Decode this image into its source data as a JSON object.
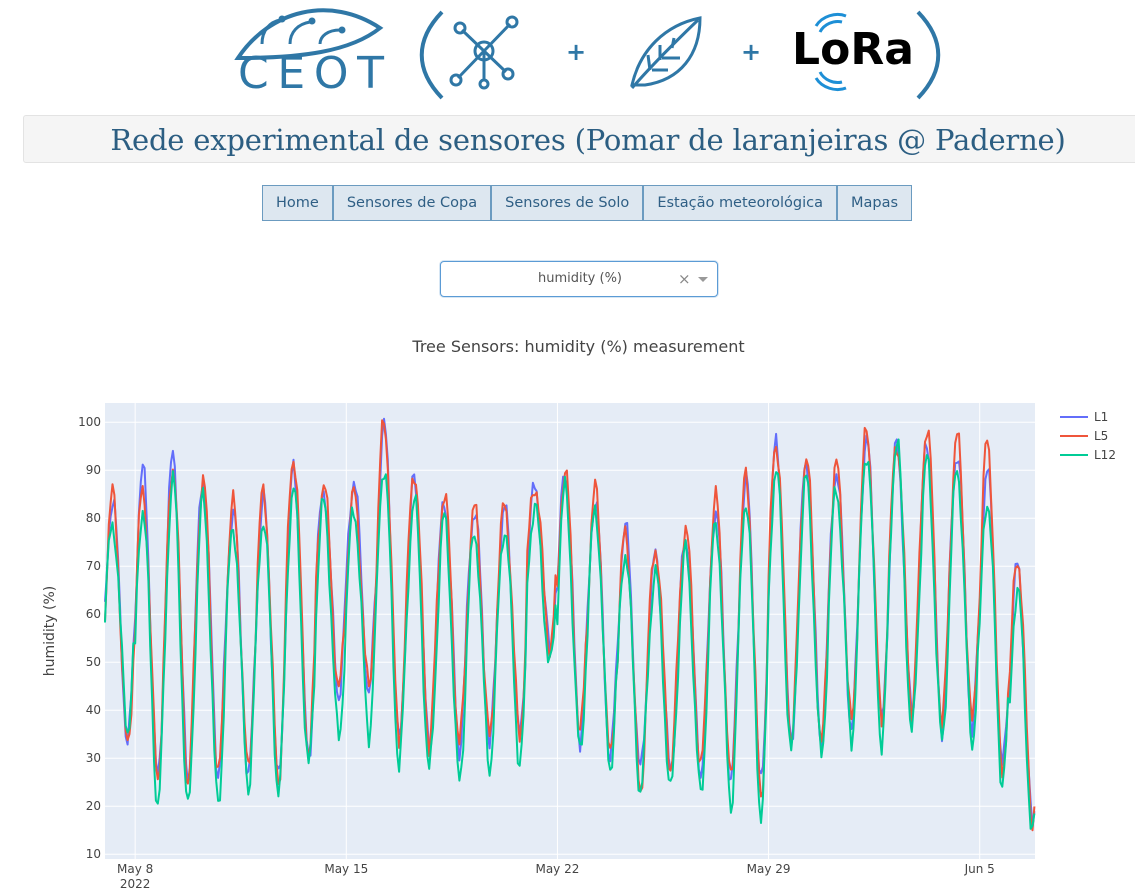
{
  "header": {
    "logo_text": "CEOT",
    "lora_text": "LoRa",
    "plus": "+"
  },
  "page_title": "Rede experimental de sensores (Pomar de laranjeiras @ Paderne)",
  "nav": {
    "items": [
      {
        "label": "Home"
      },
      {
        "label": "Sensores de Copa"
      },
      {
        "label": "Sensores de Solo"
      },
      {
        "label": "Estação meteorológica"
      },
      {
        "label": "Mapas"
      }
    ]
  },
  "dropdown": {
    "value": "humidity (%)",
    "clear_symbol": "×"
  },
  "chart_data": {
    "type": "line",
    "title": "Tree Sensors: humidity (%) measurement",
    "ylabel": "humidity (%)",
    "xlabel": "",
    "ylim": [
      9,
      104
    ],
    "yticks": [
      10,
      20,
      30,
      40,
      50,
      60,
      70,
      80,
      90,
      100
    ],
    "x_range": [
      "2022-05-07 00:00",
      "2022-06-06 20:00"
    ],
    "x_ticks": [
      {
        "date": "2022-05-08",
        "label": "May 8",
        "sublabel": "2022"
      },
      {
        "date": "2022-05-15",
        "label": "May 15"
      },
      {
        "date": "2022-05-22",
        "label": "May 22"
      },
      {
        "date": "2022-05-29",
        "label": "May 29"
      },
      {
        "date": "2022-06-05",
        "label": "Jun 5"
      }
    ],
    "legend_position": "top-right",
    "grid": true,
    "daily_max": {
      "dates": [
        "2022-05-07",
        "2022-05-08",
        "2022-05-09",
        "2022-05-10",
        "2022-05-11",
        "2022-05-12",
        "2022-05-13",
        "2022-05-14",
        "2022-05-15",
        "2022-05-16",
        "2022-05-17",
        "2022-05-18",
        "2022-05-19",
        "2022-05-20",
        "2022-05-21",
        "2022-05-22",
        "2022-05-23",
        "2022-05-24",
        "2022-05-25",
        "2022-05-26",
        "2022-05-27",
        "2022-05-28",
        "2022-05-29",
        "2022-05-30",
        "2022-05-31",
        "2022-06-01",
        "2022-06-02",
        "2022-06-03",
        "2022-06-04",
        "2022-06-05",
        "2022-06-06"
      ],
      "series": [
        {
          "name": "L1",
          "color": "#636efa",
          "values": [
            84,
            90,
            93,
            88,
            82,
            84,
            90,
            86,
            88,
            99,
            88,
            84,
            82,
            82,
            86,
            90,
            84,
            78,
            72,
            76,
            82,
            88,
            95,
            92,
            90,
            96,
            95,
            96,
            94,
            90,
            70
          ]
        },
        {
          "name": "L5",
          "color": "#ef553b",
          "values": [
            85,
            86,
            91,
            88,
            83,
            86,
            93,
            87,
            85,
            100,
            90,
            85,
            82,
            83,
            87,
            90,
            86,
            77,
            74,
            78,
            84,
            89,
            96,
            93,
            91,
            98,
            96,
            99,
            97,
            96,
            72
          ]
        },
        {
          "name": "L12",
          "color": "#00cc96",
          "values": [
            79,
            82,
            88,
            84,
            78,
            80,
            86,
            83,
            82,
            91,
            84,
            80,
            77,
            78,
            82,
            86,
            82,
            73,
            69,
            73,
            79,
            84,
            90,
            88,
            86,
            94,
            96,
            92,
            90,
            84,
            65
          ]
        }
      ]
    },
    "daily_min": {
      "series": [
        {
          "name": "L1",
          "values": [
            33,
            25,
            25,
            27,
            26,
            25,
            30,
            43,
            43,
            33,
            32,
            32,
            33,
            34,
            53,
            34,
            30,
            27,
            27,
            27,
            25,
            24,
            33,
            33,
            36,
            37,
            39,
            36,
            36,
            28,
            16
          ]
        },
        {
          "name": "L5",
          "values": [
            32,
            26,
            25,
            26,
            27,
            25,
            31,
            44,
            44,
            34,
            33,
            33,
            34,
            35,
            53,
            35,
            30,
            23,
            28,
            28,
            25,
            22,
            34,
            33,
            37,
            38,
            40,
            37,
            37,
            27,
            17
          ]
        },
        {
          "name": "L12",
          "values": [
            36,
            20,
            19,
            20,
            24,
            23,
            28,
            34,
            35,
            29,
            27,
            25,
            28,
            29,
            49,
            31,
            28,
            23,
            23,
            22,
            20,
            18,
            31,
            30,
            34,
            33,
            35,
            33,
            33,
            25,
            14
          ]
        }
      ]
    }
  }
}
